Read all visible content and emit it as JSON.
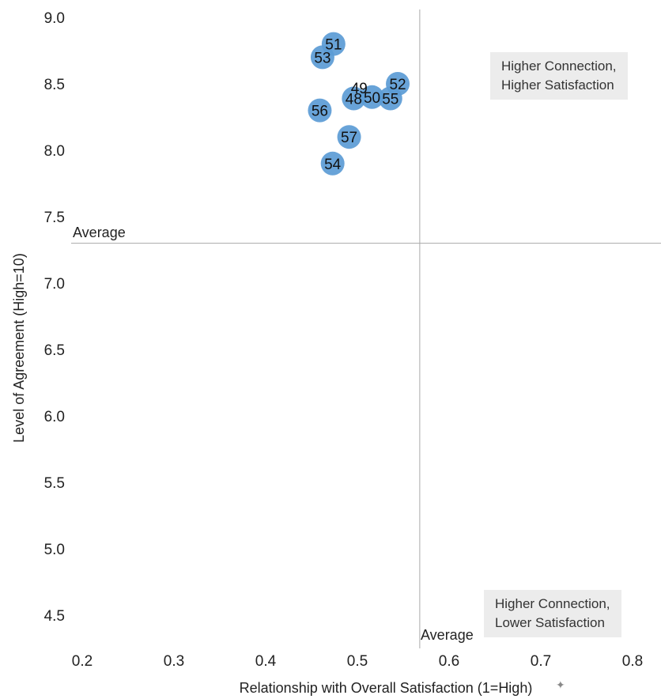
{
  "chart_data": {
    "type": "scatter",
    "xlabel": "Relationship with Overall Satisfaction (1=High)",
    "ylabel": "Level of Agreement (High=10)",
    "xlim": [
      0.2,
      0.8
    ],
    "ylim": [
      4.5,
      9.0
    ],
    "xticks": [
      "0.2",
      "0.3",
      "0.4",
      "0.5",
      "0.6",
      "0.7",
      "0.8"
    ],
    "yticks": [
      "4.5",
      "5.0",
      "5.5",
      "6.0",
      "6.5",
      "7.0",
      "7.5",
      "8.0",
      "8.5",
      "9.0"
    ],
    "grid": false,
    "points": [
      {
        "label": "51",
        "x": 0.474,
        "y": 8.8
      },
      {
        "label": "53",
        "x": 0.462,
        "y": 8.7
      },
      {
        "label": "49",
        "x": 0.502,
        "y": 8.47
      },
      {
        "label": "52",
        "x": 0.544,
        "y": 8.5
      },
      {
        "label": "48",
        "x": 0.496,
        "y": 8.39
      },
      {
        "label": "50",
        "x": 0.516,
        "y": 8.4
      },
      {
        "label": "55",
        "x": 0.536,
        "y": 8.39
      },
      {
        "label": "56",
        "x": 0.459,
        "y": 8.3
      },
      {
        "label": "57",
        "x": 0.491,
        "y": 8.1
      },
      {
        "label": "54",
        "x": 0.473,
        "y": 7.9
      }
    ],
    "average_x": 0.568,
    "average_y": 7.3,
    "average_x_label": "Average",
    "average_y_label": "Average",
    "marker_color": "#5b9bd5",
    "quadrant_labels": {
      "top_right": [
        "Higher Connection,",
        "Higher Satisfaction"
      ],
      "bottom_right": [
        "Higher Connection,",
        "Lower Satisfaction"
      ]
    }
  }
}
